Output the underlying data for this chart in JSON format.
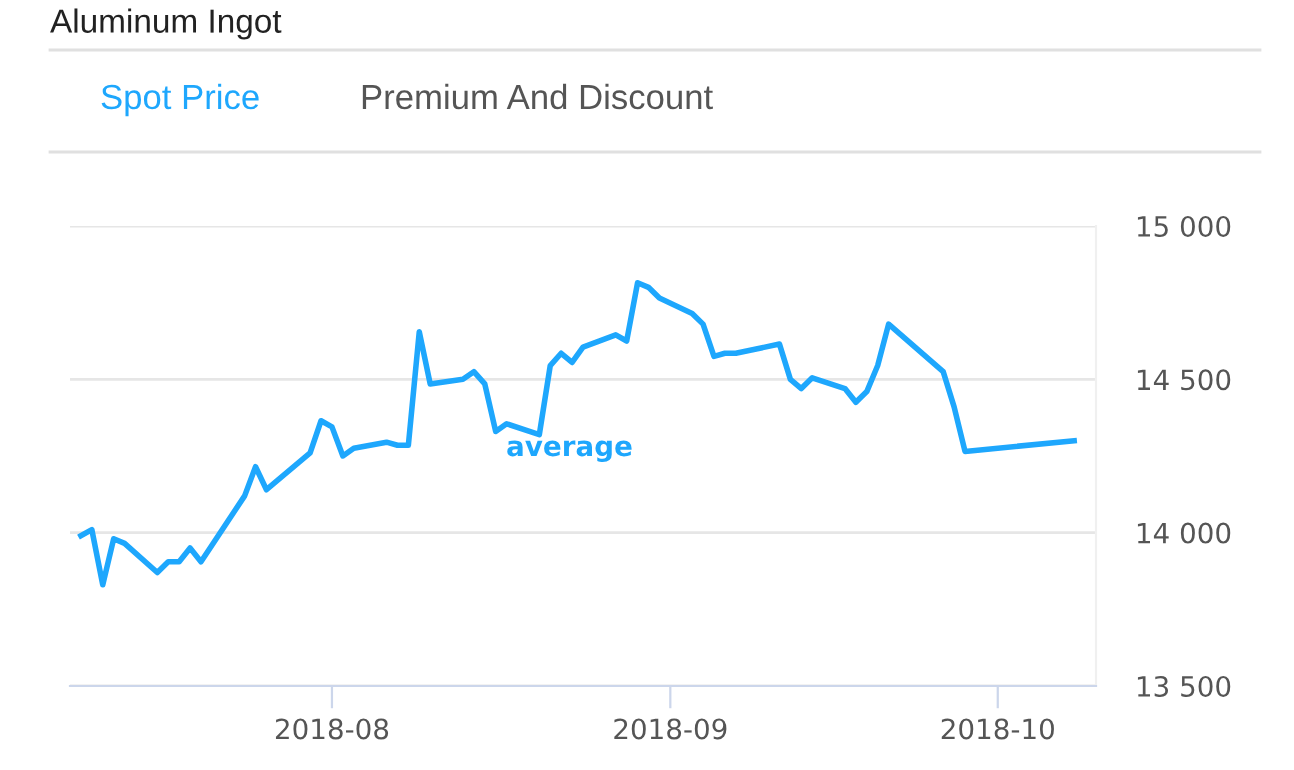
{
  "chart_data": {
    "type": "line",
    "title": "Aluminum Ingot",
    "annotations": [
      "Spot Price",
      "Premium And Discount"
    ],
    "x": [
      "2018-07-09",
      "2018-07-10",
      "2018-07-11",
      "2018-07-12",
      "2018-07-13",
      "2018-07-16",
      "2018-07-17",
      "2018-07-18",
      "2018-07-19",
      "2018-07-20",
      "2018-07-24",
      "2018-07-25",
      "2018-07-26",
      "2018-07-30",
      "2018-07-31",
      "2018-08-01",
      "2018-08-02",
      "2018-08-03",
      "2018-08-06",
      "2018-08-07",
      "2018-08-08",
      "2018-08-09",
      "2018-08-10",
      "2018-08-13",
      "2018-08-14",
      "2018-08-15",
      "2018-08-16",
      "2018-08-17",
      "2018-08-20",
      "2018-08-21",
      "2018-08-22",
      "2018-08-23",
      "2018-08-24",
      "2018-08-27",
      "2018-08-28",
      "2018-08-29",
      "2018-08-30",
      "2018-08-31",
      "2018-09-03",
      "2018-09-04",
      "2018-09-05",
      "2018-09-06",
      "2018-09-07",
      "2018-09-11",
      "2018-09-12",
      "2018-09-13",
      "2018-09-14",
      "2018-09-17",
      "2018-09-18",
      "2018-09-19",
      "2018-09-20",
      "2018-09-21",
      "2018-09-26",
      "2018-09-27",
      "2018-09-28",
      "2018-10-08"
    ],
    "series": [
      {
        "name": "average",
        "color": "#1ea7fd",
        "values": [
          13990,
          14010,
          13830,
          13980,
          13965,
          13870,
          13905,
          13905,
          13950,
          13905,
          14120,
          14215,
          14140,
          14260,
          14365,
          14345,
          14250,
          14275,
          14295,
          14285,
          14285,
          14655,
          14485,
          14500,
          14525,
          14485,
          14330,
          14355,
          14320,
          14545,
          14585,
          14555,
          14605,
          14645,
          14625,
          14815,
          14800,
          14765,
          14715,
          14680,
          14575,
          14585,
          14585,
          14615,
          14500,
          14470,
          14505,
          14470,
          14425,
          14460,
          14545,
          14680,
          14525,
          14410,
          14265,
          14300
        ]
      }
    ],
    "xlim": [
      "2018-07-08",
      "2018-10-10"
    ],
    "xticks": [
      "2018-08",
      "2018-09",
      "2018-10"
    ],
    "ylim": [
      13500,
      15000
    ],
    "yticks": [
      {
        "value": 13500,
        "label": "13 500"
      },
      {
        "value": 14000,
        "label": "14 000"
      },
      {
        "value": 14500,
        "label": "14 500"
      },
      {
        "value": 15000,
        "label": "15 000"
      }
    ],
    "grid": "y",
    "legend": false,
    "marker": "none",
    "line_style": "solid"
  }
}
